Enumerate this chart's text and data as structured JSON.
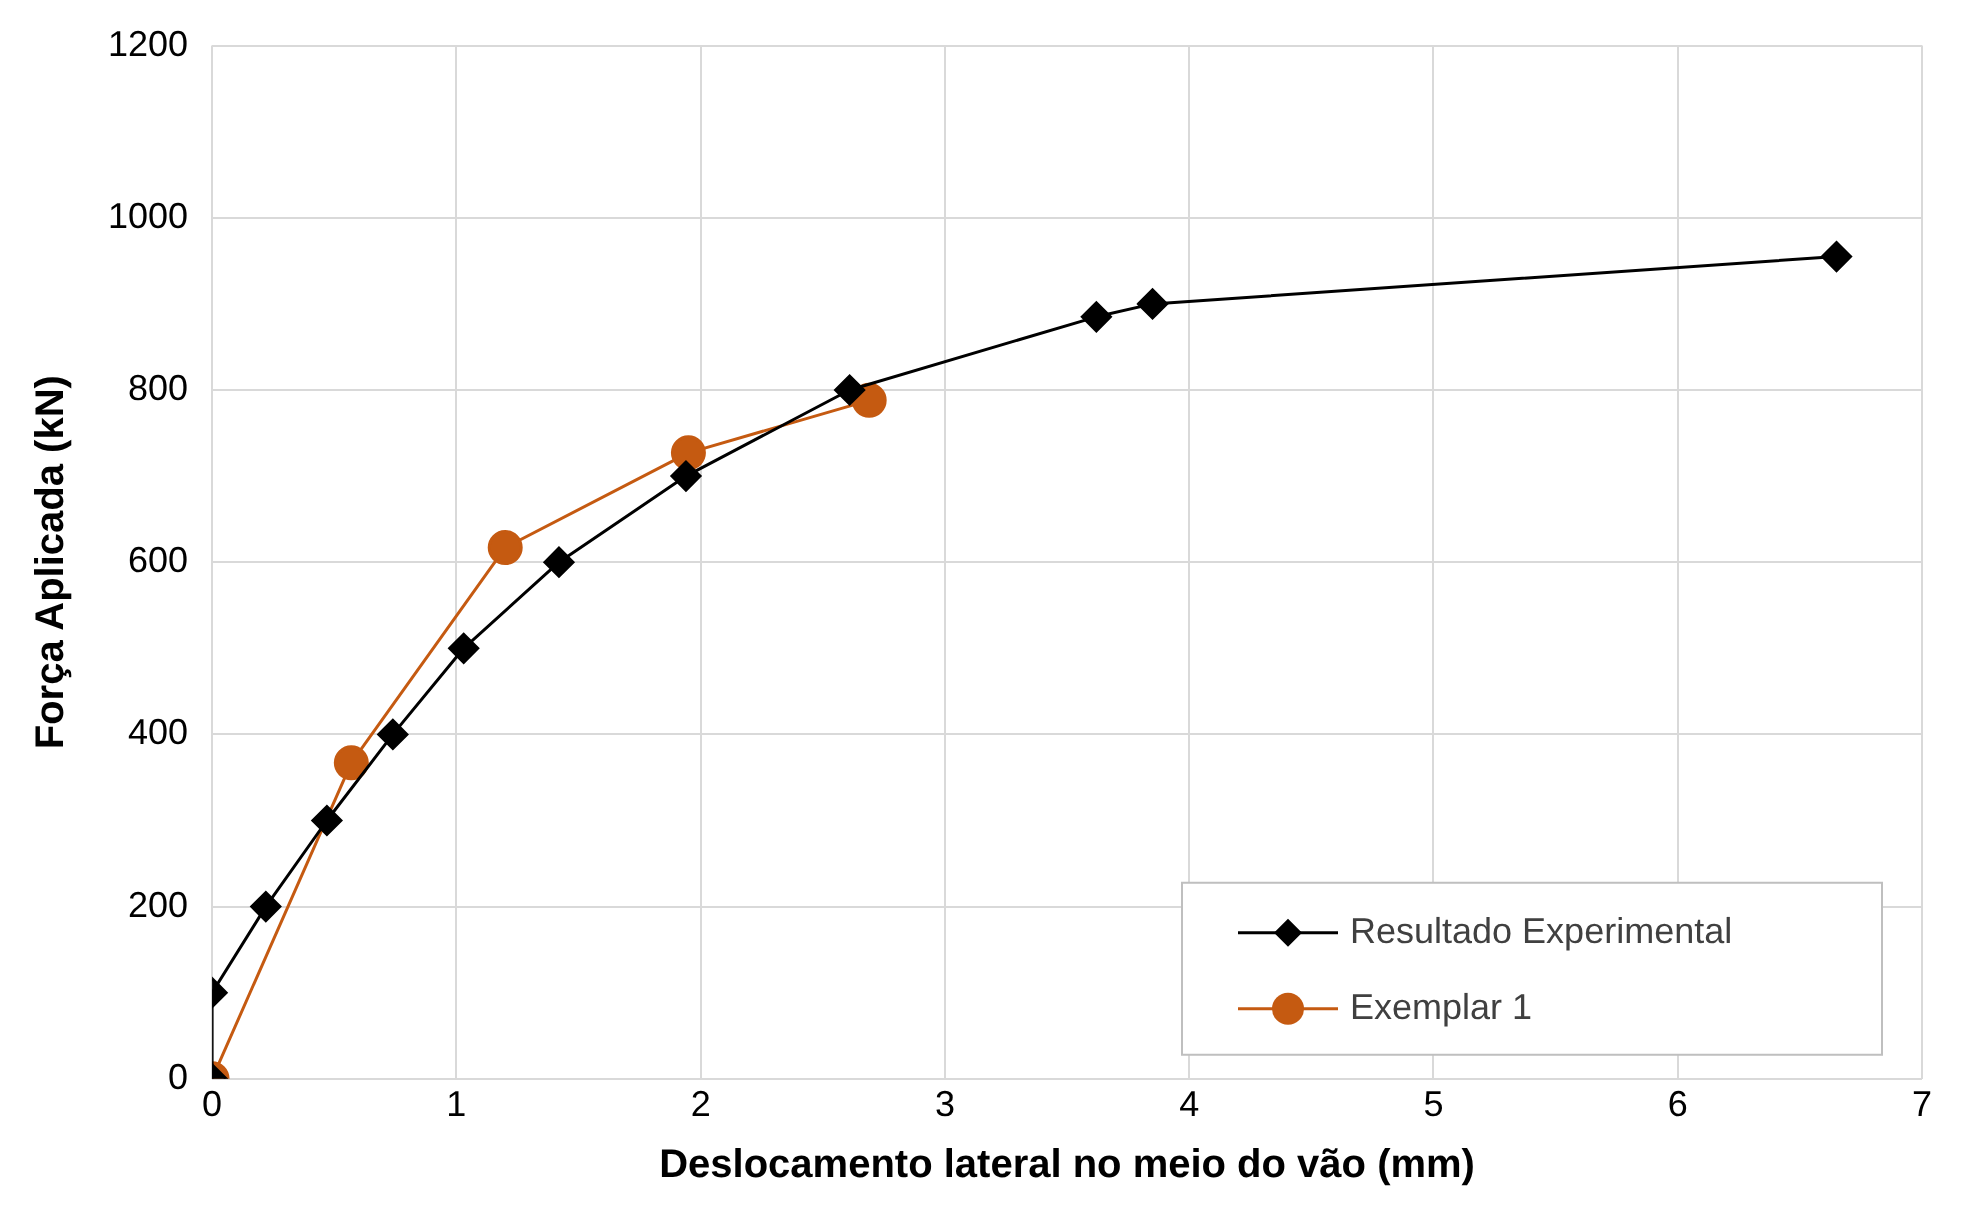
{
  "chart_data": {
    "type": "line",
    "xlabel": "Deslocamento lateral no meio do vão (mm)",
    "ylabel": "Força Aplicada (kN)",
    "xlim": [
      0,
      7
    ],
    "xticks": [
      0,
      1,
      2,
      3,
      4,
      5,
      6,
      7
    ],
    "ylim": [
      0,
      1200
    ],
    "yticks": [
      0,
      200,
      400,
      600,
      800,
      1000,
      1200
    ],
    "grid": true,
    "legend": "bottom right",
    "series": [
      {
        "name": "Resultado Experimental",
        "color": "#000000",
        "marker": "diamond",
        "x": [
          0,
          0,
          0.22,
          0.47,
          0.74,
          1.03,
          1.42,
          1.94,
          2.61,
          3.62,
          3.85,
          6.65
        ],
        "values": [
          0,
          100,
          200,
          300,
          400,
          500,
          600,
          700,
          800,
          885,
          900,
          955
        ]
      },
      {
        "name": "Exemplar 1",
        "color": "#c55a11",
        "marker": "circle",
        "x": [
          0,
          0.57,
          1.2,
          1.95,
          2.69
        ],
        "values": [
          0,
          367,
          617,
          727,
          788
        ]
      }
    ]
  }
}
